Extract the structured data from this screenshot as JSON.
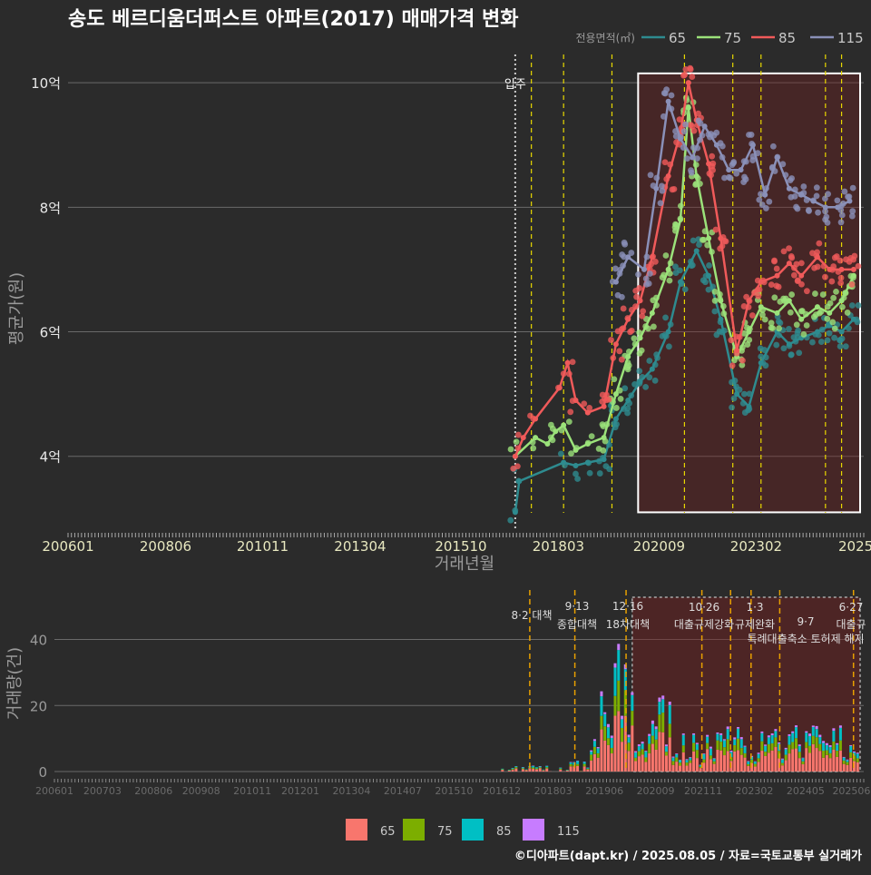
{
  "title": "송도 베르디움더퍼스트 아파트(2017) 매매가격 변화",
  "footer": "©디아파트(dapt.kr) / 2025.08.05 / 자료=국토교통부 실거래가",
  "colors": {
    "s65": "#2e8b8f",
    "s75": "#9be27a",
    "s85": "#f05a5a",
    "s115": "#8a90b8",
    "bar65": "#f8766d",
    "bar75": "#7cae00",
    "bar85": "#00bfc4",
    "bar115": "#c77cff",
    "vline": "#e8d800",
    "vline_bottom": "#e8a000"
  },
  "chart_data": [
    {
      "type": "line",
      "ylabel": "평균가(원)",
      "xlabel": "거래년월",
      "yticks": [
        "4억",
        "6억",
        "8억",
        "10억"
      ],
      "ytick_values": [
        4,
        6,
        8,
        10
      ],
      "xticks": [
        "200601",
        "200806",
        "201011",
        "201304",
        "201510",
        "201803",
        "202009",
        "202302",
        "2025"
      ],
      "ylim": [
        2.8,
        10.6
      ],
      "xlim": [
        2006.0,
        2025.75
      ],
      "legend_title": "전용면적(㎡)",
      "legend_position": "top-right",
      "annotation": "입주",
      "series": [
        {
          "name": "65",
          "x": [
            2017.1,
            2017.2,
            2018.3,
            2018.6,
            2018.9,
            2019.3,
            2019.6,
            2019.9,
            2020.2,
            2020.5,
            2020.9,
            2021.2,
            2021.6,
            2021.9,
            2022.2,
            2022.6,
            2022.9,
            2023.2,
            2023.6,
            2023.9,
            2024.2,
            2024.6,
            2024.9,
            2025.2,
            2025.5
          ],
          "y": [
            3.1,
            3.6,
            3.9,
            3.85,
            3.9,
            3.95,
            4.6,
            4.9,
            5.2,
            5.4,
            6.0,
            6.8,
            7.3,
            6.9,
            6.2,
            5.0,
            4.8,
            5.5,
            6.0,
            5.8,
            5.9,
            6.0,
            6.1,
            6.0,
            6.2
          ]
        },
        {
          "name": "75",
          "x": [
            2017.1,
            2017.6,
            2017.9,
            2018.1,
            2018.3,
            2018.6,
            2018.9,
            2019.3,
            2019.6,
            2019.9,
            2020.2,
            2020.5,
            2020.9,
            2021.2,
            2021.4,
            2021.6,
            2021.9,
            2022.2,
            2022.6,
            2022.9,
            2023.2,
            2023.6,
            2023.9,
            2024.2,
            2024.6,
            2024.9,
            2025.2,
            2025.5
          ],
          "y": [
            4.0,
            4.3,
            4.2,
            4.4,
            4.5,
            4.1,
            4.2,
            4.3,
            5.0,
            5.6,
            5.9,
            6.3,
            7.0,
            7.8,
            9.6,
            8.5,
            7.5,
            6.5,
            5.6,
            6.0,
            6.4,
            6.3,
            6.5,
            6.2,
            6.4,
            6.3,
            6.5,
            6.9
          ]
        },
        {
          "name": "85",
          "x": [
            2017.1,
            2017.3,
            2017.6,
            2018.2,
            2018.4,
            2018.6,
            2018.9,
            2019.3,
            2019.6,
            2019.9,
            2020.2,
            2020.5,
            2020.9,
            2021.2,
            2021.4,
            2021.6,
            2021.9,
            2022.2,
            2022.6,
            2022.9,
            2023.2,
            2023.6,
            2023.9,
            2024.2,
            2024.6,
            2024.9,
            2025.2,
            2025.5
          ],
          "y": [
            4.0,
            4.3,
            4.6,
            5.1,
            5.5,
            4.9,
            4.7,
            4.8,
            5.8,
            6.2,
            6.5,
            7.2,
            8.5,
            9.2,
            10.0,
            9.4,
            8.7,
            7.5,
            5.7,
            6.5,
            6.8,
            6.9,
            7.1,
            6.9,
            7.2,
            7.0,
            7.0,
            7.0
          ]
        },
        {
          "name": "115",
          "x": [
            2019.6,
            2019.9,
            2020.3,
            2020.6,
            2020.9,
            2021.2,
            2021.5,
            2021.8,
            2022.1,
            2022.4,
            2022.7,
            2023.0,
            2023.3,
            2023.6,
            2023.9,
            2024.2,
            2024.5,
            2024.8,
            2025.1,
            2025.4
          ],
          "y": [
            6.8,
            7.2,
            7.0,
            8.3,
            9.7,
            9.1,
            8.8,
            9.3,
            9.0,
            8.6,
            8.6,
            9.0,
            8.2,
            8.8,
            8.3,
            8.2,
            8.1,
            8.0,
            8.0,
            8.1
          ]
        }
      ],
      "vlines": [
        2017.5,
        2018.3,
        2019.5,
        2021.3,
        2022.5,
        2023.2,
        2024.8,
        2025.2
      ]
    },
    {
      "type": "bar",
      "ylabel": "거래량(건)",
      "yticks": [
        "0",
        "20",
        "40"
      ],
      "ytick_values": [
        0,
        20,
        40
      ],
      "ylim": [
        0,
        55
      ],
      "xticks": [
        "200601",
        "200703",
        "200806",
        "200908",
        "201011",
        "201201",
        "201304",
        "201407",
        "201510",
        "201612",
        "201803",
        "201906",
        "202009",
        "202111",
        "202302",
        "202405",
        "202506"
      ],
      "legend": [
        "65",
        "75",
        "85",
        "115"
      ],
      "annotations": [
        {
          "date": "8·2 대책",
          "label": ""
        },
        {
          "date": "9·13",
          "label": "종합대책"
        },
        {
          "date": "12·16",
          "label": "18차대책"
        },
        {
          "date": "10·26",
          "label": "대출규제강화"
        },
        {
          "date": "1·3",
          "label": "규제완화"
        },
        {
          "date": "9·7",
          "label": ""
        },
        {
          "date": "6·27",
          "label": "대출규"
        }
      ],
      "annotation_sub": "특례대출축소 토허제 해지",
      "vlines": [
        2017.6,
        2018.7,
        2019.95,
        2021.8,
        2022.5,
        2023.0,
        2023.7,
        2025.5
      ]
    }
  ]
}
